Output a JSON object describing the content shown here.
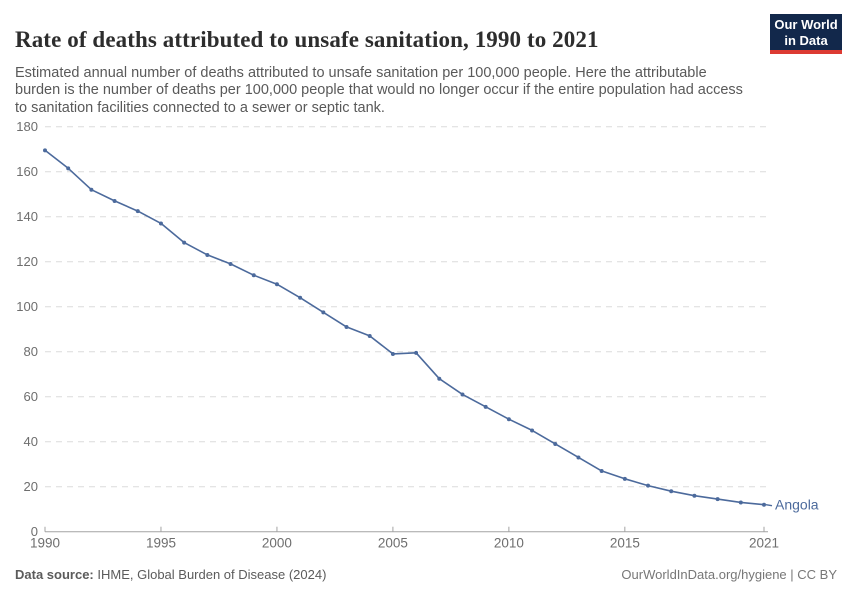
{
  "header": {
    "title": "Rate of deaths attributed to unsafe sanitation, 1990 to 2021",
    "subtitle": "Estimated annual number of deaths attributed to unsafe sanitation per 100,000 people. Here the attributable burden is the number of deaths per 100,000 people that would no longer occur if the entire population had access to sanitation facilities connected to a sewer or septic tank.",
    "logo": {
      "line1": "Our World",
      "line2": "in Data"
    }
  },
  "chart_data": {
    "type": "line",
    "title": "Rate of deaths attributed to unsafe sanitation, 1990 to 2021",
    "entity": "Angola",
    "x": [
      1990,
      1991,
      1992,
      1993,
      1994,
      1995,
      1996,
      1997,
      1998,
      1999,
      2000,
      2001,
      2002,
      2003,
      2004,
      2005,
      2006,
      2007,
      2008,
      2009,
      2010,
      2011,
      2012,
      2013,
      2014,
      2015,
      2016,
      2017,
      2018,
      2019,
      2020,
      2021
    ],
    "series": [
      {
        "name": "Angola",
        "values": [
          169.5,
          161.5,
          152,
          147,
          142.5,
          137,
          128.5,
          123,
          119,
          114,
          110,
          104,
          97.5,
          91,
          87,
          79,
          79.5,
          68,
          61,
          55.5,
          50,
          45,
          39,
          33,
          27,
          23.5,
          20.5,
          18,
          16,
          14.5,
          13,
          12
        ]
      }
    ],
    "xlabel": "",
    "ylabel": "",
    "xlim": [
      1990,
      2021
    ],
    "ylim": [
      0,
      180
    ],
    "xticks": [
      1990,
      1995,
      2000,
      2005,
      2010,
      2015,
      2021
    ],
    "yticks": [
      0,
      20,
      40,
      60,
      80,
      100,
      120,
      140,
      160,
      180
    ],
    "grid": "horizontal-dashed",
    "legend_position": "end-of-line-label",
    "line_color": "#4C6A9C",
    "marker": "dot",
    "grid_color": "#dcdcdc",
    "axis_color": "#a3a3a3",
    "tick_label_color": "#6e6e6e"
  },
  "footer": {
    "source_label": "Data source:",
    "source_text": " IHME, Global Burden of Disease (2024)",
    "rights": "OurWorldInData.org/hygiene | CC BY"
  }
}
